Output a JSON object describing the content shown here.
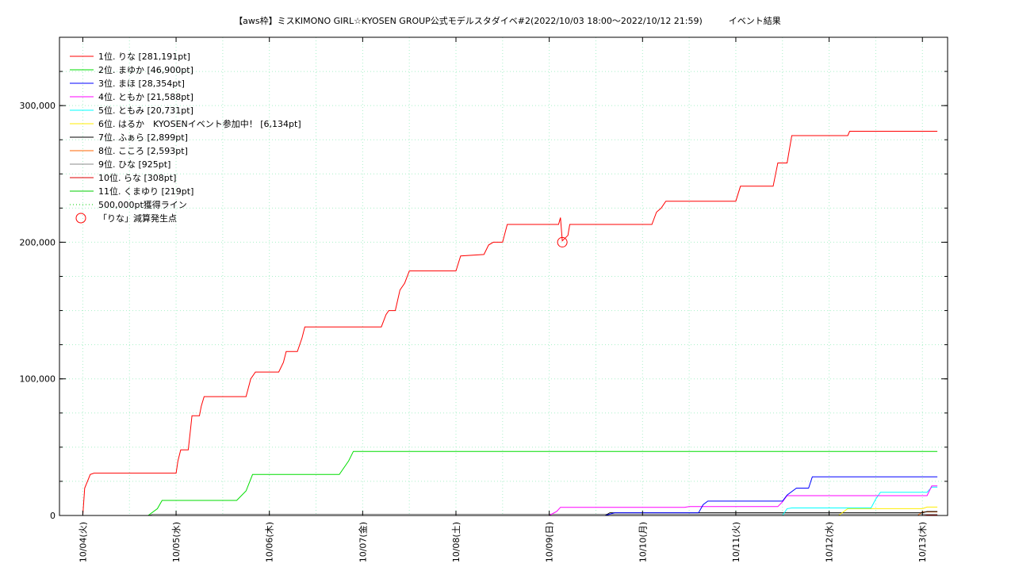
{
  "chart_data": {
    "type": "line",
    "title": "【aws枠】ミスKIMONO GIRL☆KYOSEN GROUP公式モデルスタダイベ#2(2022/10/03 18:00〜2022/10/12 21:59)　　　イベント結果",
    "xlabel": "",
    "ylabel": "",
    "x_unit": "days since 2022/10/03 18:00",
    "x_ticks": [
      "10/04(火)",
      "10/05(水)",
      "10/06(木)",
      "10/07(金)",
      "10/08(土)",
      "10/09(日)",
      "10/10(月)",
      "10/11(火)",
      "10/12(水)",
      "10/13(木)"
    ],
    "y_ticks": [
      "0",
      "100,000",
      "200,000",
      "300,000"
    ],
    "ylim": [
      0,
      350000
    ],
    "grid": true,
    "legend_position": "top-left",
    "series": [
      {
        "name": "1位. りな [281,191pt]",
        "color": "#ff0000",
        "points": [
          [
            0,
            0
          ],
          [
            0.02,
            20000
          ],
          [
            0.05,
            25000
          ],
          [
            0.08,
            30000
          ],
          [
            0.12,
            31000
          ],
          [
            1.0,
            31000
          ],
          [
            1.02,
            40000
          ],
          [
            1.05,
            48000
          ],
          [
            1.13,
            48000
          ],
          [
            1.15,
            60000
          ],
          [
            1.17,
            73000
          ],
          [
            1.25,
            73000
          ],
          [
            1.27,
            80000
          ],
          [
            1.3,
            87000
          ],
          [
            1.75,
            87000
          ],
          [
            1.8,
            100000
          ],
          [
            1.85,
            105000
          ],
          [
            2.1,
            105000
          ],
          [
            2.15,
            112000
          ],
          [
            2.18,
            120000
          ],
          [
            2.3,
            120000
          ],
          [
            2.35,
            130000
          ],
          [
            2.38,
            138000
          ],
          [
            3.2,
            138000
          ],
          [
            3.25,
            147000
          ],
          [
            3.28,
            150000
          ],
          [
            3.35,
            150000
          ],
          [
            3.4,
            165000
          ],
          [
            3.45,
            170000
          ],
          [
            3.5,
            179000
          ],
          [
            4.0,
            179000
          ],
          [
            4.05,
            190000
          ],
          [
            4.3,
            191000
          ],
          [
            4.35,
            198000
          ],
          [
            4.4,
            200000
          ],
          [
            4.5,
            200000
          ],
          [
            4.55,
            213000
          ],
          [
            5.1,
            213000
          ],
          [
            5.12,
            218000
          ],
          [
            5.14,
            201000
          ],
          [
            5.2,
            205000
          ],
          [
            5.22,
            213000
          ],
          [
            6.1,
            213000
          ],
          [
            6.15,
            222000
          ],
          [
            6.2,
            225000
          ],
          [
            6.25,
            230000
          ],
          [
            7.0,
            230000
          ],
          [
            7.05,
            241000
          ],
          [
            7.4,
            241000
          ],
          [
            7.45,
            258000
          ],
          [
            7.55,
            258000
          ],
          [
            7.6,
            278000
          ],
          [
            8.2,
            278000
          ],
          [
            8.22,
            281191
          ],
          [
            9.16,
            281191
          ]
        ]
      },
      {
        "name": "2位. まゆか [46,900pt]",
        "color": "#00dd00",
        "points": [
          [
            0,
            0
          ],
          [
            0.7,
            0
          ],
          [
            0.8,
            5000
          ],
          [
            0.85,
            11000
          ],
          [
            1.65,
            11000
          ],
          [
            1.75,
            18000
          ],
          [
            1.82,
            30000
          ],
          [
            2.75,
            30000
          ],
          [
            2.85,
            40000
          ],
          [
            2.9,
            46900
          ],
          [
            9.16,
            46900
          ]
        ]
      },
      {
        "name": "3位. まほ [28,354pt]",
        "color": "#0000ff",
        "points": [
          [
            0,
            0
          ],
          [
            5.6,
            0
          ],
          [
            5.7,
            2000
          ],
          [
            6.6,
            2000
          ],
          [
            6.65,
            8000
          ],
          [
            6.7,
            10500
          ],
          [
            7.5,
            10500
          ],
          [
            7.55,
            15000
          ],
          [
            7.65,
            20000
          ],
          [
            7.78,
            20000
          ],
          [
            7.82,
            28354
          ],
          [
            9.16,
            28354
          ]
        ]
      },
      {
        "name": "4位. ともか [21,588pt]",
        "color": "#ff00ff",
        "points": [
          [
            0,
            0
          ],
          [
            5.0,
            0
          ],
          [
            5.08,
            3000
          ],
          [
            5.12,
            6000
          ],
          [
            6.45,
            6000
          ],
          [
            6.5,
            6500
          ],
          [
            7.45,
            6500
          ],
          [
            7.5,
            10000
          ],
          [
            7.55,
            14500
          ],
          [
            9.05,
            14500
          ],
          [
            9.1,
            21588
          ],
          [
            9.16,
            21588
          ]
        ]
      },
      {
        "name": "5位. ともみ [20,731pt]",
        "color": "#00ffff",
        "points": [
          [
            0,
            0
          ],
          [
            7.5,
            0
          ],
          [
            7.55,
            5000
          ],
          [
            7.6,
            5500
          ],
          [
            8.45,
            5500
          ],
          [
            8.5,
            12000
          ],
          [
            8.55,
            17000
          ],
          [
            9.05,
            17000
          ],
          [
            9.1,
            20731
          ],
          [
            9.16,
            20731
          ]
        ]
      },
      {
        "name": "6位. はるか　KYOSENイベント参加中！ [6,134pt]",
        "color": "#ffee00",
        "points": [
          [
            0,
            0
          ],
          [
            8.1,
            0
          ],
          [
            8.2,
            5000
          ],
          [
            9.0,
            5000
          ],
          [
            9.05,
            6134
          ],
          [
            9.16,
            6134
          ]
        ]
      },
      {
        "name": "7位. ふぁら [2,899pt]",
        "color": "#000000",
        "points": [
          [
            0,
            0
          ],
          [
            5.6,
            0
          ],
          [
            5.65,
            2000
          ],
          [
            9.0,
            2000
          ],
          [
            9.05,
            2899
          ],
          [
            9.16,
            2899
          ]
        ]
      },
      {
        "name": "8位. こころ [2,593pt]",
        "color": "#ff6600",
        "points": [
          [
            0,
            0
          ],
          [
            8.95,
            0
          ],
          [
            9.0,
            2593
          ],
          [
            9.16,
            2593
          ]
        ]
      },
      {
        "name": "9位. ひな [925pt]",
        "color": "#888888",
        "points": [
          [
            0,
            0
          ],
          [
            0.7,
            0
          ],
          [
            0.75,
            925
          ],
          [
            9.16,
            925
          ]
        ]
      },
      {
        "name": "10位. らな [308pt]",
        "color": "#dd0000",
        "points": [
          [
            0,
            0
          ],
          [
            9.0,
            0
          ],
          [
            9.05,
            308
          ],
          [
            9.16,
            308
          ]
        ]
      },
      {
        "name": "11位. くまゆり [219pt]",
        "color": "#00cc00",
        "points": [
          [
            0,
            0
          ],
          [
            9.05,
            0
          ],
          [
            9.1,
            219
          ],
          [
            9.16,
            219
          ]
        ]
      }
    ],
    "reference_line": {
      "name": "500,000pt獲得ライン",
      "value": 500000,
      "color": "#00cc00",
      "style": "dotted"
    },
    "markers": [
      {
        "name": "「りな」減算発生点",
        "x": 5.14,
        "y": 200000,
        "color": "#ff0000",
        "shape": "circle"
      }
    ]
  }
}
